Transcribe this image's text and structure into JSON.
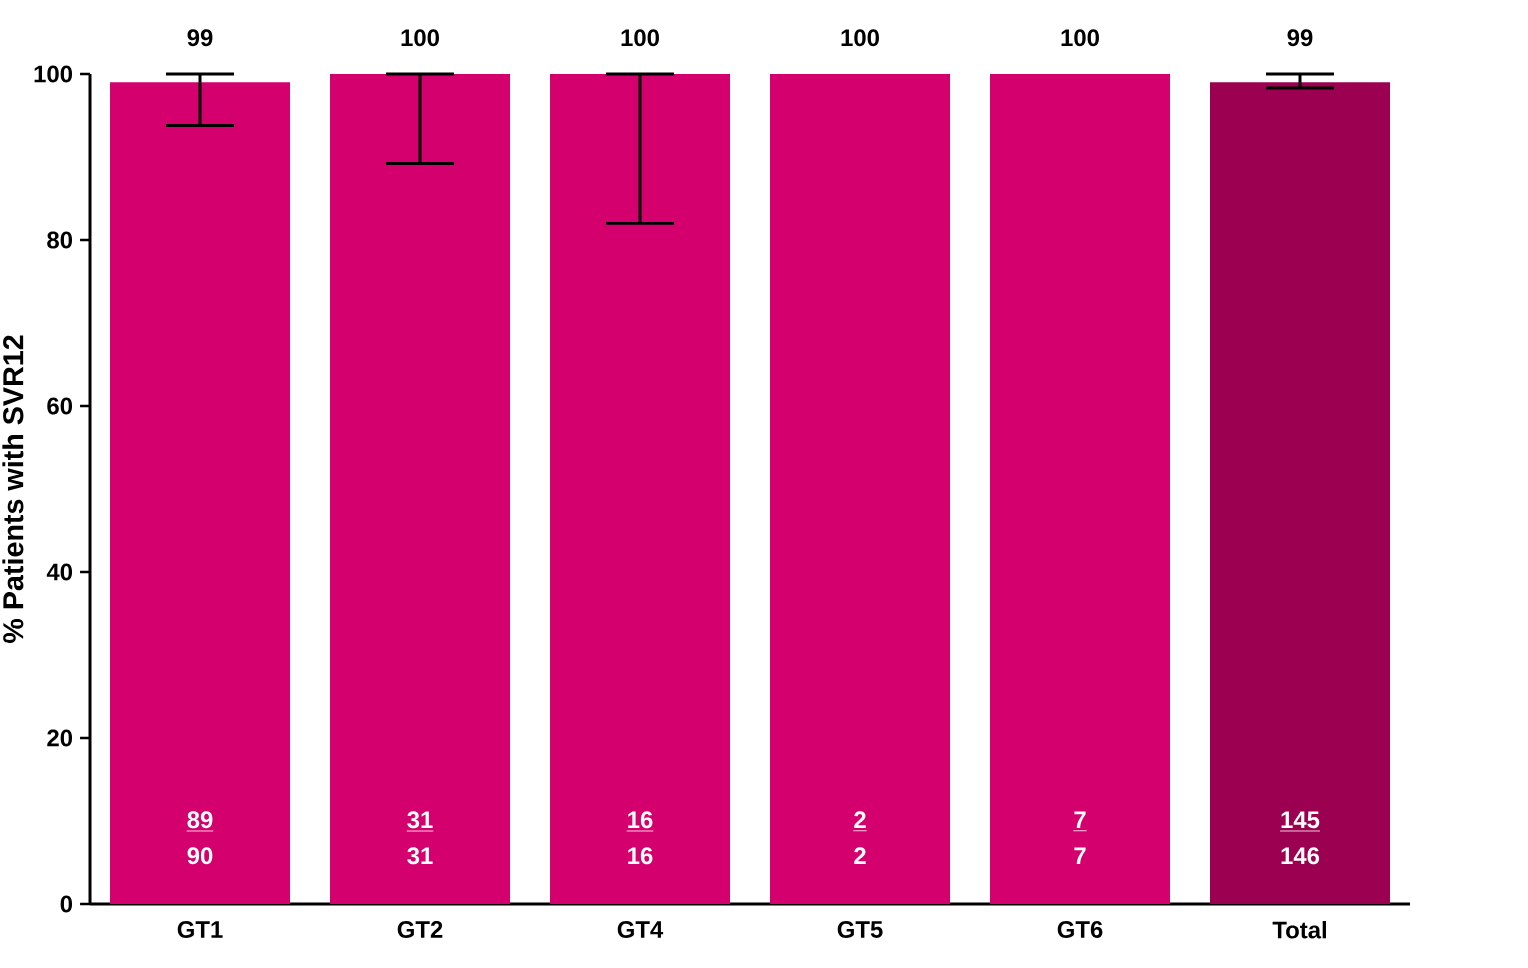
{
  "chart_data": {
    "type": "bar",
    "ylabel": "% Patients with SVR12",
    "categories": [
      "GT1",
      "GT2",
      "GT4",
      "GT5",
      "GT6",
      "Total"
    ],
    "values": [
      99,
      100,
      100,
      100,
      100,
      99
    ],
    "colors": [
      "#d4006e",
      "#d4006e",
      "#d4006e",
      "#d4006e",
      "#d4006e",
      "#9c0050"
    ],
    "errors": [
      [
        93.8,
        100
      ],
      [
        89.2,
        100
      ],
      [
        82,
        100
      ],
      null,
      null,
      [
        98.3,
        100
      ]
    ],
    "data_labels": true,
    "ylim": [
      0,
      100
    ],
    "yticks": [
      0,
      20,
      40,
      60,
      80,
      100
    ],
    "grid": false,
    "annotations": [
      "89",
      "90",
      "31",
      "31",
      "16",
      "16",
      "2",
      "2",
      "7",
      "7",
      "145",
      "146"
    ]
  }
}
